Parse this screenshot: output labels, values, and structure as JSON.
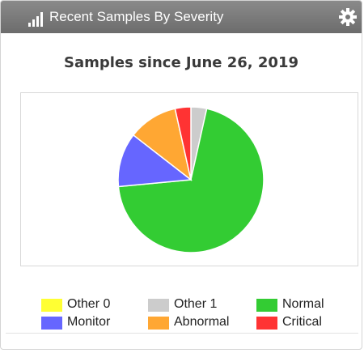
{
  "header": {
    "title": "Recent Samples By Severity",
    "icon": "bar-chart-icon",
    "settings_icon": "gear-icon",
    "background_color": "#7a7a7a"
  },
  "chart_data": {
    "type": "pie",
    "title": "Samples since June 26, 2019",
    "start_angle_deg": 0,
    "slices": [
      {
        "label": "Other 0",
        "value": 0,
        "color": "#ffff33"
      },
      {
        "label": "Other 1",
        "value": 3.5,
        "color": "#cccccc"
      },
      {
        "label": "Normal",
        "value": 70,
        "color": "#33cc33"
      },
      {
        "label": "Monitor",
        "value": 12,
        "color": "#6666ff"
      },
      {
        "label": "Abnormal",
        "value": 11,
        "color": "#ffa733"
      },
      {
        "label": "Critical",
        "value": 3.5,
        "color": "#ff3333"
      }
    ],
    "legend": [
      {
        "label": "Other 0",
        "color": "#ffff33"
      },
      {
        "label": "Other 1",
        "color": "#cccccc"
      },
      {
        "label": "Normal",
        "color": "#33cc33"
      },
      {
        "label": "Monitor",
        "color": "#6666ff"
      },
      {
        "label": "Abnormal",
        "color": "#ffa733"
      },
      {
        "label": "Critical",
        "color": "#ff3333"
      }
    ],
    "legend_position": "bottom"
  }
}
